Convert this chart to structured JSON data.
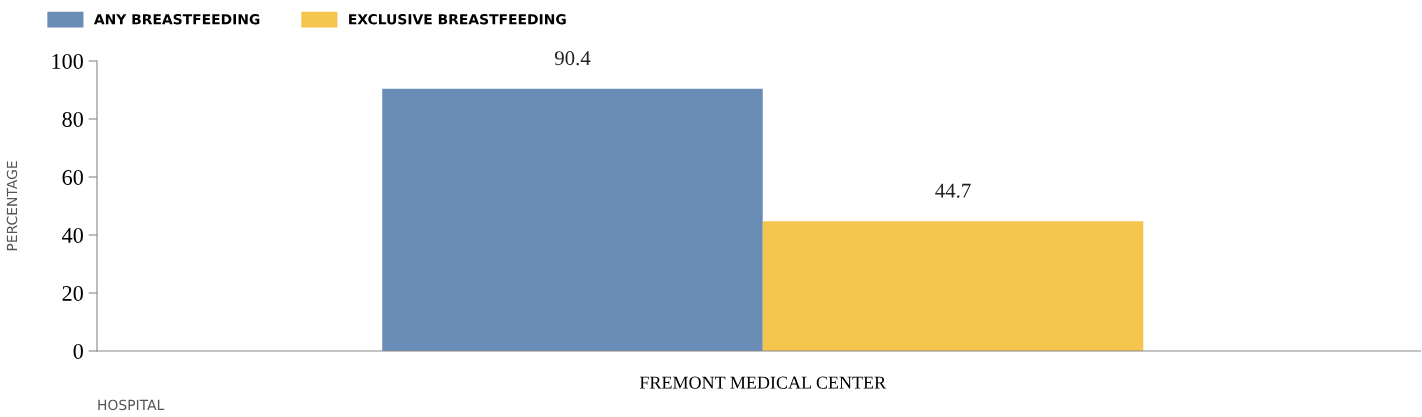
{
  "chart_data": {
    "type": "bar",
    "categories": [
      "FREMONT MEDICAL CENTER"
    ],
    "series": [
      {
        "name": "ANY BREASTFEEDING",
        "color": "#6a8db8",
        "values": [
          90.4
        ]
      },
      {
        "name": "EXCLUSIVE BREASTFEEDING",
        "color": "#f6c54e",
        "values": [
          44.7
        ]
      }
    ],
    "ylim": [
      0,
      100
    ],
    "yticks": [
      0,
      20,
      40,
      60,
      80,
      100
    ],
    "ylabel": "PERCENTAGE",
    "xlabel": "HOSPITAL",
    "data_labels": true,
    "legend": "top left",
    "grid": false
  }
}
